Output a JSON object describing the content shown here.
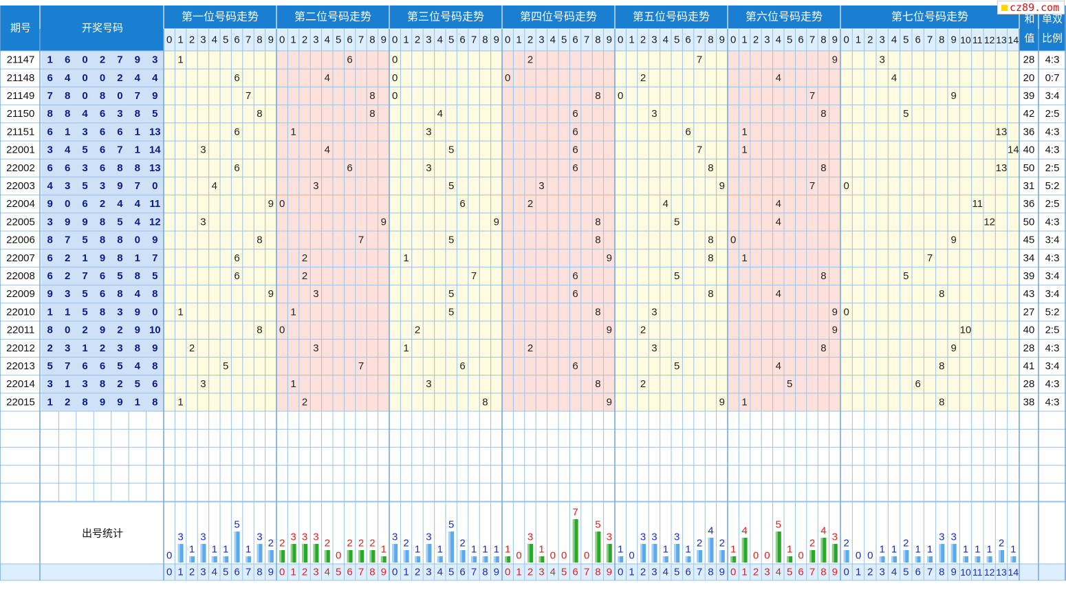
{
  "header": {
    "period_label": "期号",
    "draw_label": "开奖号码",
    "position_labels": [
      "第一位号码走势",
      "第二位号码走势",
      "第三位号码走势",
      "第四位号码走势",
      "第五位号码走势",
      "第六位号码走势",
      "第七位号码走势"
    ],
    "sum_label": "和值",
    "ratio_label": "单双比例"
  },
  "logo": {
    "text": "cz89.com"
  },
  "digits_0_9": [
    "0",
    "1",
    "2",
    "3",
    "4",
    "5",
    "6",
    "7",
    "8",
    "9"
  ],
  "digits_0_14": [
    "0",
    "1",
    "2",
    "3",
    "4",
    "5",
    "6",
    "7",
    "8",
    "9",
    "10",
    "11",
    "12",
    "13",
    "14"
  ],
  "colors": {
    "header_bg": "#1a7fd0",
    "col_header_bg": "#ddeeff",
    "draw_bg": "#cfe1f7",
    "draw_text": "#0a1a8a",
    "yellow_bg": "#fffbe0",
    "pink_bg": "#ffe1dc",
    "grid": "#98c2e8",
    "stat_blue": "#5aaaf0",
    "stat_green": "#2aa82a",
    "stat_red_text": "#e02020",
    "stat_blue_text": "#1a2cc0"
  },
  "stats_label": "出号统计",
  "chart_data": {
    "type": "table",
    "rows": [
      {
        "period": "21147",
        "draw": [
          "1",
          "6",
          "0",
          "2",
          "7",
          "9",
          "3"
        ],
        "sum": "28",
        "ratio": "4:3"
      },
      {
        "period": "21148",
        "draw": [
          "6",
          "4",
          "0",
          "0",
          "2",
          "4",
          "4"
        ],
        "sum": "20",
        "ratio": "0:7"
      },
      {
        "period": "21149",
        "draw": [
          "7",
          "8",
          "0",
          "8",
          "0",
          "7",
          "9"
        ],
        "sum": "39",
        "ratio": "3:4"
      },
      {
        "period": "21150",
        "draw": [
          "8",
          "8",
          "4",
          "6",
          "3",
          "8",
          "5"
        ],
        "sum": "42",
        "ratio": "2:5"
      },
      {
        "period": "21151",
        "draw": [
          "6",
          "1",
          "3",
          "6",
          "6",
          "1",
          "13"
        ],
        "sum": "36",
        "ratio": "4:3"
      },
      {
        "period": "22001",
        "draw": [
          "3",
          "4",
          "5",
          "6",
          "7",
          "1",
          "14"
        ],
        "sum": "40",
        "ratio": "4:3"
      },
      {
        "period": "22002",
        "draw": [
          "6",
          "6",
          "3",
          "6",
          "8",
          "8",
          "13"
        ],
        "sum": "50",
        "ratio": "2:5"
      },
      {
        "period": "22003",
        "draw": [
          "4",
          "3",
          "5",
          "3",
          "9",
          "7",
          "0"
        ],
        "sum": "31",
        "ratio": "5:2"
      },
      {
        "period": "22004",
        "draw": [
          "9",
          "0",
          "6",
          "2",
          "4",
          "4",
          "11"
        ],
        "sum": "36",
        "ratio": "2:5"
      },
      {
        "period": "22005",
        "draw": [
          "3",
          "9",
          "9",
          "8",
          "5",
          "4",
          "12"
        ],
        "sum": "50",
        "ratio": "4:3"
      },
      {
        "period": "22006",
        "draw": [
          "8",
          "7",
          "5",
          "8",
          "8",
          "0",
          "9"
        ],
        "sum": "45",
        "ratio": "3:4"
      },
      {
        "period": "22007",
        "draw": [
          "6",
          "2",
          "1",
          "9",
          "8",
          "1",
          "7"
        ],
        "sum": "34",
        "ratio": "4:3"
      },
      {
        "period": "22008",
        "draw": [
          "6",
          "2",
          "7",
          "6",
          "5",
          "8",
          "5"
        ],
        "sum": "39",
        "ratio": "3:4"
      },
      {
        "period": "22009",
        "draw": [
          "9",
          "3",
          "5",
          "6",
          "8",
          "4",
          "8"
        ],
        "sum": "43",
        "ratio": "3:4"
      },
      {
        "period": "22010",
        "draw": [
          "1",
          "1",
          "5",
          "8",
          "3",
          "9",
          "0"
        ],
        "sum": "27",
        "ratio": "5:2"
      },
      {
        "period": "22011",
        "draw": [
          "8",
          "0",
          "2",
          "9",
          "2",
          "9",
          "10"
        ],
        "sum": "40",
        "ratio": "2:5"
      },
      {
        "period": "22012",
        "draw": [
          "2",
          "3",
          "1",
          "2",
          "3",
          "8",
          "9"
        ],
        "sum": "28",
        "ratio": "4:3"
      },
      {
        "period": "22013",
        "draw": [
          "5",
          "7",
          "6",
          "6",
          "5",
          "4",
          "8"
        ],
        "sum": "41",
        "ratio": "3:4"
      },
      {
        "period": "22014",
        "draw": [
          "3",
          "1",
          "3",
          "8",
          "2",
          "5",
          "6"
        ],
        "sum": "28",
        "ratio": "4:3"
      },
      {
        "period": "22015",
        "draw": [
          "1",
          "2",
          "8",
          "9",
          "9",
          "1",
          "8"
        ],
        "sum": "38",
        "ratio": "4:3"
      }
    ],
    "stats": [
      [
        0,
        3,
        1,
        3,
        1,
        1,
        5,
        1,
        3,
        2
      ],
      [
        2,
        3,
        3,
        3,
        2,
        0,
        2,
        2,
        2,
        1
      ],
      [
        3,
        2,
        1,
        3,
        1,
        5,
        2,
        1,
        1,
        1
      ],
      [
        1,
        0,
        3,
        1,
        0,
        0,
        7,
        0,
        5,
        3
      ],
      [
        1,
        0,
        3,
        3,
        1,
        3,
        1,
        2,
        4,
        2
      ],
      [
        1,
        4,
        0,
        0,
        5,
        1,
        0,
        2,
        4,
        3
      ],
      [
        2,
        0,
        0,
        1,
        1,
        2,
        1,
        1,
        3,
        3,
        1,
        1,
        1,
        2,
        1
      ]
    ],
    "stats_labels": [
      [
        "0",
        "3",
        "1",
        "3",
        "1",
        "1",
        "5",
        "1",
        "3",
        "2"
      ],
      [
        "2",
        "3",
        "3",
        "3",
        "2",
        "0",
        "2",
        "2",
        "2",
        "1"
      ],
      [
        "3",
        "2",
        "1",
        "3",
        "1",
        "5",
        "2",
        "1",
        "1",
        "1"
      ],
      [
        "1",
        "0",
        "3",
        "1",
        "0",
        "0",
        "7",
        "0",
        "5",
        "3"
      ],
      [
        "1",
        "0",
        "3",
        "3",
        "1",
        "3",
        "1",
        "2",
        "4",
        "2"
      ],
      [
        "1",
        "4",
        "0",
        "0",
        "5",
        "1",
        "0",
        "2",
        "4",
        "3"
      ],
      [
        "2",
        "0",
        "0",
        "1",
        "1",
        "2",
        "1",
        "1",
        "3",
        "3",
        "1",
        "1",
        "1",
        "2",
        "1"
      ]
    ]
  }
}
